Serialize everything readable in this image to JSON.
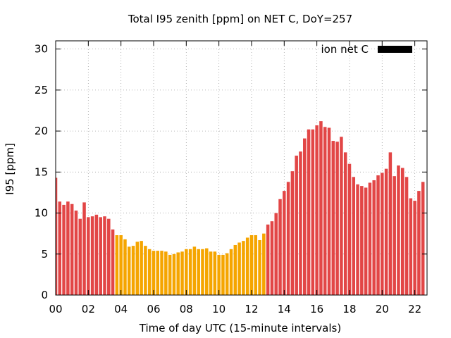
{
  "chart_data": {
    "type": "bar",
    "title": "Total I95 zenith [ppm] on NET C, DoY=257",
    "xlabel": "Time of day UTC (15-minute intervals)",
    "ylabel": "I95 [ppm]",
    "xlim": [
      0,
      22.75
    ],
    "ylim": [
      0,
      31
    ],
    "x_ticks": [
      "00",
      "02",
      "04",
      "06",
      "08",
      "10",
      "12",
      "14",
      "16",
      "18",
      "20",
      "22"
    ],
    "y_ticks": [
      "0",
      "5",
      "10",
      "15",
      "20",
      "25",
      "30"
    ],
    "grid": true,
    "legend": {
      "label": "ion net C",
      "color": "#000000",
      "placement": "top-right"
    },
    "colors": {
      "high": "#e24646",
      "low": "#f5a500"
    },
    "interval_hours": 0.25,
    "x_start": 0,
    "values": [
      14.3,
      11.4,
      11.0,
      11.4,
      11.1,
      10.3,
      9.3,
      11.3,
      9.5,
      9.6,
      9.8,
      9.5,
      9.6,
      9.3,
      8.0,
      7.3,
      7.3,
      6.8,
      5.9,
      6.0,
      6.5,
      6.6,
      6.0,
      5.6,
      5.4,
      5.4,
      5.4,
      5.3,
      4.9,
      5.0,
      5.2,
      5.3,
      5.6,
      5.6,
      5.9,
      5.6,
      5.6,
      5.7,
      5.3,
      5.3,
      4.9,
      4.9,
      5.1,
      5.6,
      6.1,
      6.4,
      6.6,
      7.0,
      7.3,
      7.3,
      6.7,
      7.5,
      8.6,
      9.0,
      10.0,
      11.7,
      12.7,
      13.8,
      15.1,
      17.0,
      17.5,
      19.1,
      20.2,
      20.2,
      20.7,
      21.2,
      20.5,
      20.4,
      18.8,
      18.7,
      19.3,
      17.4,
      16.0,
      14.4,
      13.5,
      13.3,
      13.1,
      13.7,
      14.0,
      14.6,
      14.9,
      15.4,
      17.4,
      14.5,
      15.8,
      15.5,
      14.4,
      11.8,
      11.5,
      12.7,
      13.8
    ],
    "categories": [
      "high",
      "high",
      "high",
      "high",
      "high",
      "high",
      "high",
      "high",
      "high",
      "high",
      "high",
      "high",
      "high",
      "high",
      "high",
      "low",
      "low",
      "low",
      "low",
      "low",
      "low",
      "low",
      "low",
      "low",
      "low",
      "low",
      "low",
      "low",
      "low",
      "low",
      "low",
      "low",
      "low",
      "low",
      "low",
      "low",
      "low",
      "low",
      "low",
      "low",
      "low",
      "low",
      "low",
      "low",
      "low",
      "low",
      "low",
      "low",
      "low",
      "low",
      "low",
      "low",
      "high",
      "high",
      "high",
      "high",
      "high",
      "high",
      "high",
      "high",
      "high",
      "high",
      "high",
      "high",
      "high",
      "high",
      "high",
      "high",
      "high",
      "high",
      "high",
      "high",
      "high",
      "high",
      "high",
      "high",
      "high",
      "high",
      "high",
      "high",
      "high",
      "high",
      "high",
      "high",
      "high",
      "high",
      "high",
      "high",
      "high",
      "high",
      "high"
    ]
  }
}
